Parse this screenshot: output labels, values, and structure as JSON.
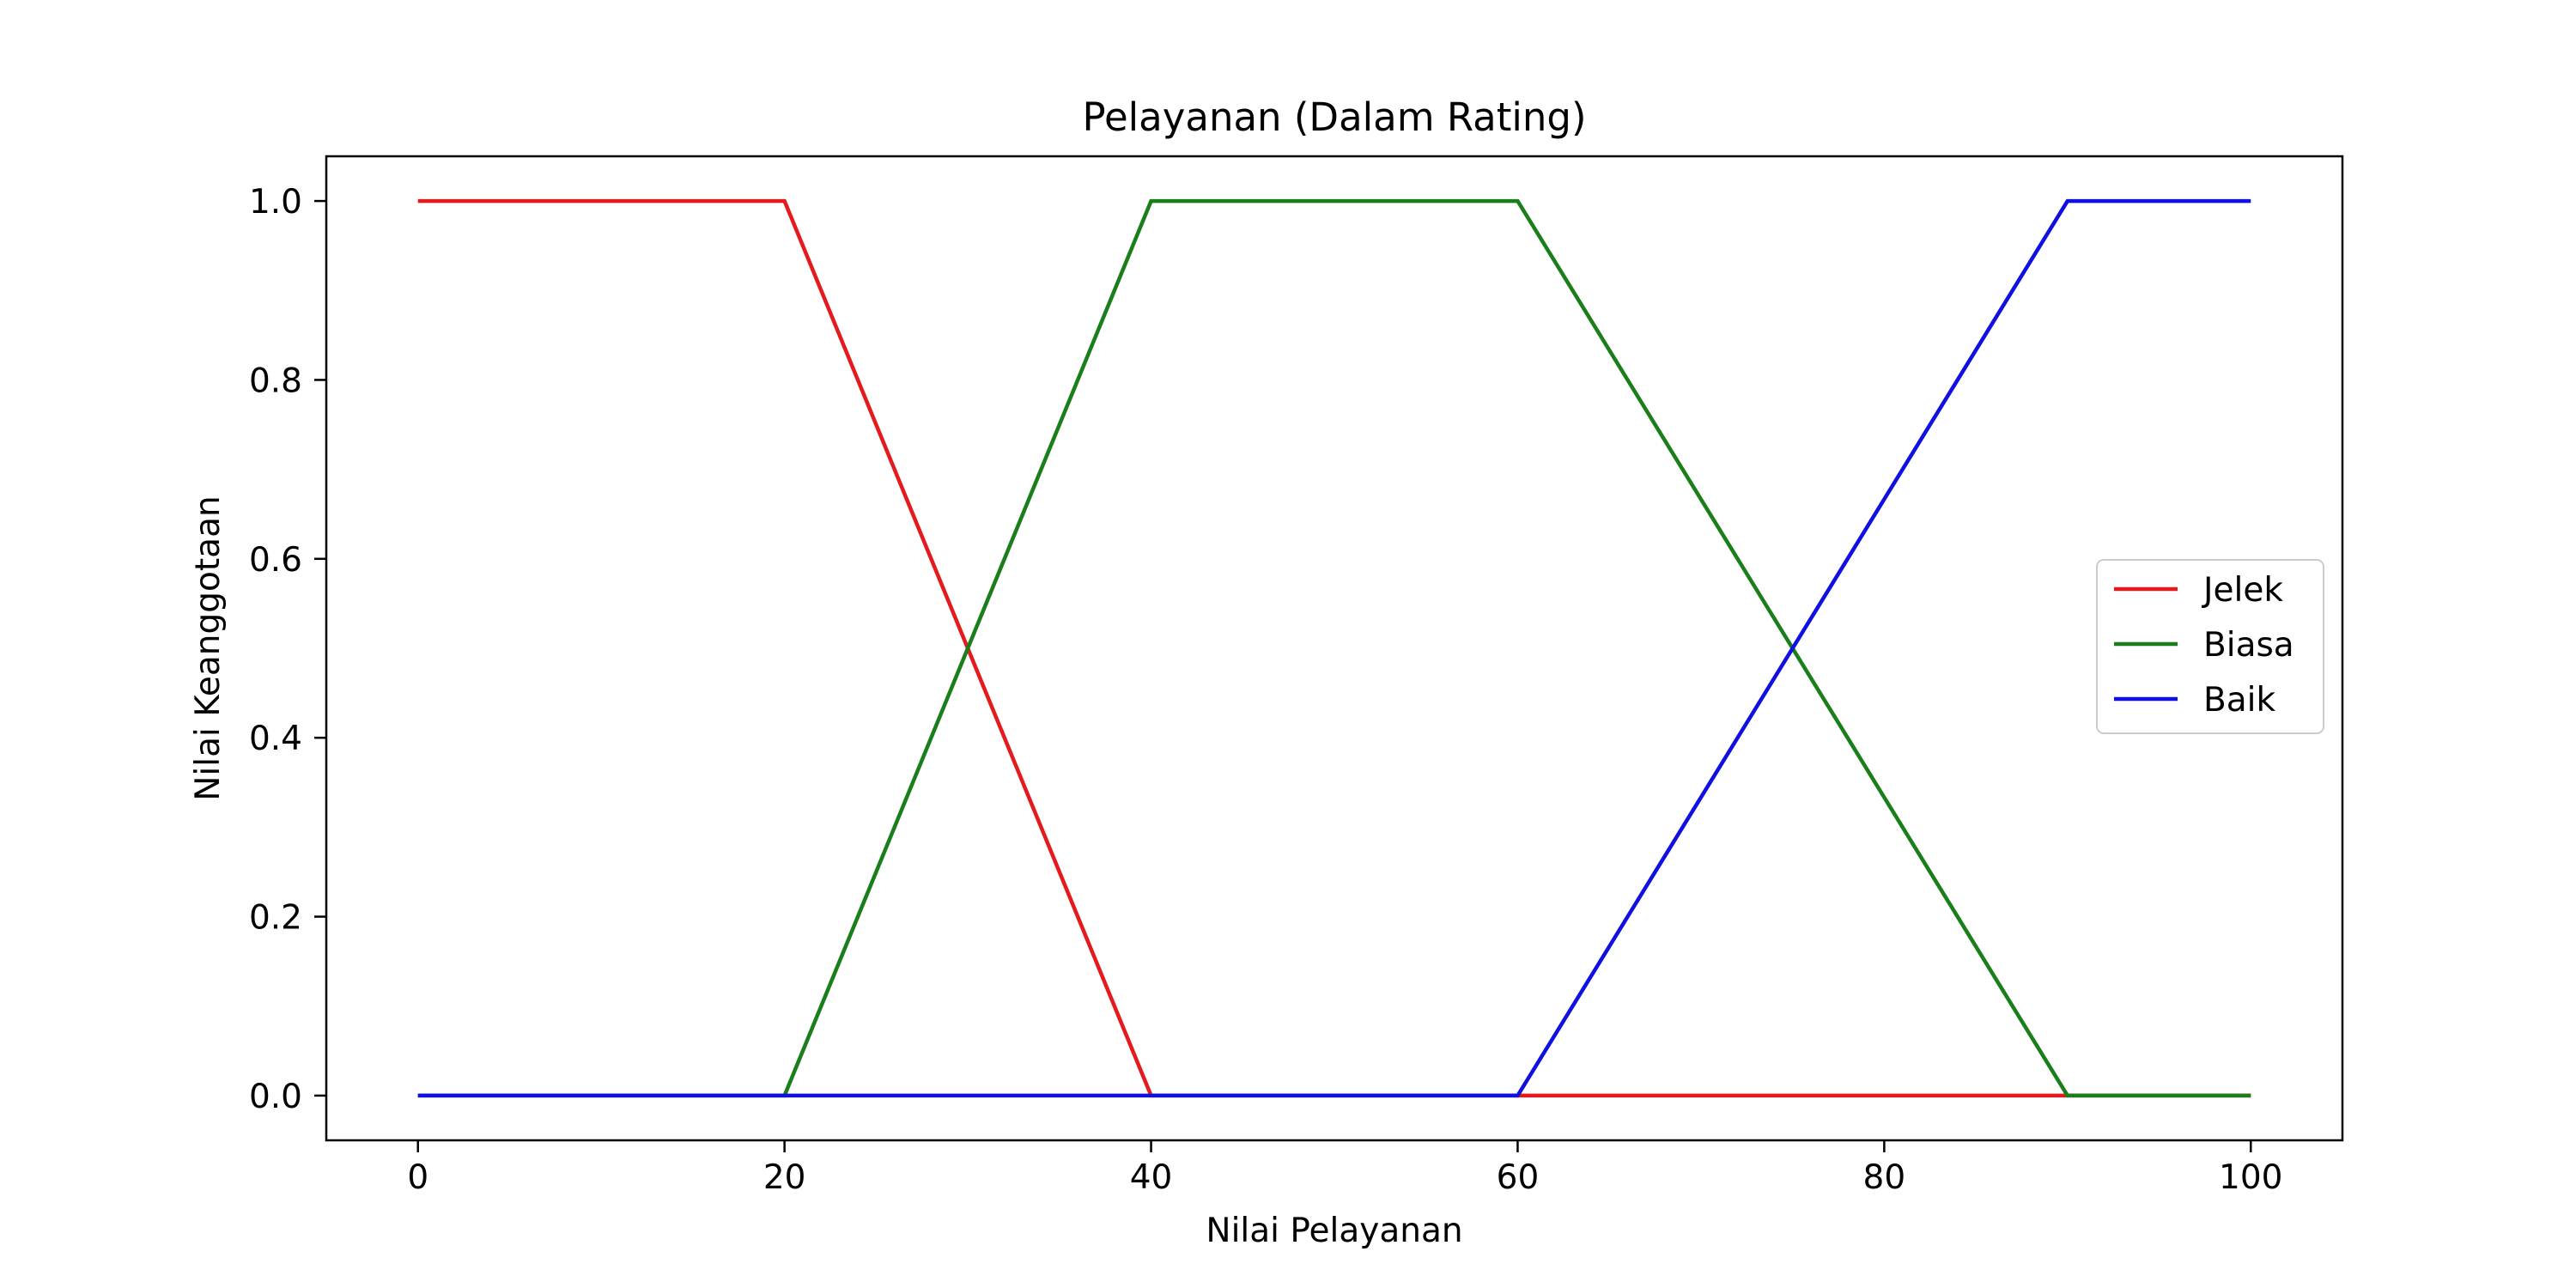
{
  "chart_data": {
    "type": "line",
    "title": "Pelayanan (Dalam Rating)",
    "xlabel": "Nilai Pelayanan",
    "ylabel": "Nilai Keanggotaan",
    "xlim": [
      -5,
      105
    ],
    "ylim": [
      -0.05,
      1.05
    ],
    "xticks": [
      0,
      20,
      40,
      60,
      80,
      100
    ],
    "xtick_labels": [
      "0",
      "20",
      "40",
      "60",
      "80",
      "100"
    ],
    "yticks": [
      0.0,
      0.2,
      0.4,
      0.6,
      0.8,
      1.0
    ],
    "ytick_labels": [
      "0.0",
      "0.2",
      "0.4",
      "0.6",
      "0.8",
      "1.0"
    ],
    "grid": false,
    "legend_position": "center-right",
    "series": [
      {
        "name": "Jelek",
        "color": "#e41a1c",
        "x": [
          0,
          20,
          40,
          100
        ],
        "y": [
          1,
          1,
          0,
          0
        ]
      },
      {
        "name": "Biasa",
        "color": "#1a7f1a",
        "x": [
          0,
          20,
          40,
          60,
          90,
          100
        ],
        "y": [
          0,
          0,
          1,
          1,
          0,
          0
        ]
      },
      {
        "name": "Baik",
        "color": "#1010e0",
        "x": [
          0,
          60,
          90,
          100
        ],
        "y": [
          0,
          0,
          1,
          1
        ]
      }
    ]
  }
}
